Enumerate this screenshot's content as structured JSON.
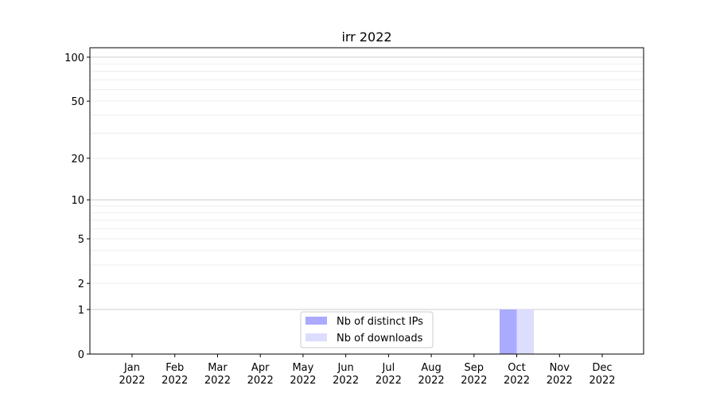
{
  "chart_data": {
    "type": "bar",
    "title": "irr 2022",
    "xlabel": "",
    "ylabel": "",
    "yscale": "log(1+y)",
    "ylim": [
      0,
      116
    ],
    "yticks": [
      0,
      1,
      2,
      5,
      10,
      20,
      50,
      100
    ],
    "grid": true,
    "legend_placement": "lower center",
    "categories": [
      "Jan\n2022",
      "Feb\n2022",
      "Mar\n2022",
      "Apr\n2022",
      "May\n2022",
      "Jun\n2022",
      "Jul\n2022",
      "Aug\n2022",
      "Sep\n2022",
      "Oct\n2022",
      "Nov\n2022",
      "Dec\n2022"
    ],
    "series": [
      {
        "name": "Nb of distinct IPs",
        "color": "#aaaaff",
        "values": [
          0,
          0,
          0,
          0,
          0,
          0,
          0,
          0,
          0,
          1,
          0,
          0
        ]
      },
      {
        "name": "Nb of downloads",
        "color": "#ddddff",
        "values": [
          0,
          0,
          0,
          0,
          0,
          0,
          0,
          0,
          0,
          1,
          0,
          0
        ]
      }
    ]
  }
}
